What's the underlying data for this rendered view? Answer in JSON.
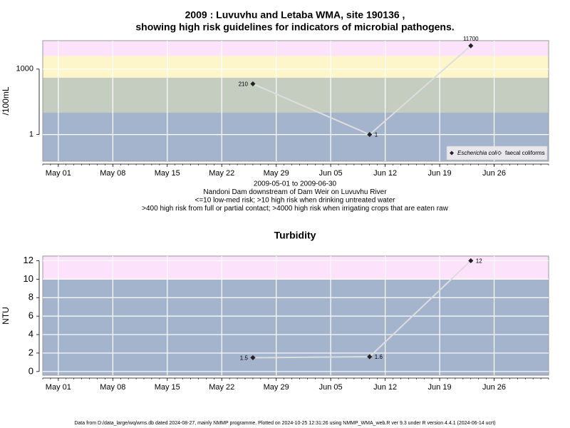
{
  "chart_data": [
    {
      "type": "line",
      "title": [
        "2009 : Luvuvhu and Letaba WMA, site 190136 ,",
        "showing high risk guidelines for indicators of microbial pathogens."
      ],
      "y_label": "/100mL",
      "log_scale": true,
      "x": [
        "May 26",
        "Jun 10",
        "Jun 23"
      ],
      "series": [
        {
          "name": "Escherichia coli",
          "color": "#dddddd",
          "marker_color": "#222222",
          "marker": "filled",
          "values": [
            210,
            1,
            11700
          ]
        },
        {
          "name": "faecal coliforms",
          "color": "#dddddd",
          "marker_color": "#222222",
          "marker": "open",
          "values": [
            null,
            null,
            null
          ]
        }
      ],
      "xlim": [
        "Apr 29",
        "Jul 03"
      ],
      "xticks": [
        "May 01",
        "May 08",
        "May 15",
        "May 22",
        "May 29",
        "Jun 05",
        "Jun 12",
        "Jun 19",
        "Jun 26"
      ],
      "ylim": [
        0.06,
        20000
      ],
      "yticks": [
        1,
        1000
      ],
      "thresholds": [
        10,
        400,
        4000
      ],
      "band_colors": [
        "#a4b4cd",
        "#c5cdc0",
        "#fdf6cb",
        "#fde2fb"
      ],
      "grid": true,
      "legend": "lower right",
      "notes": [
        "2009-05-01 to 2009-06-30",
        "Nandoni Dam downstream of Dam Weir on Luvuvhu River",
        "<=10 low-med risk; >10 high risk when drinking untreated water",
        ">400 high risk from full or partial contact; >4000 high risk when irrigating crops that are eaten raw"
      ]
    },
    {
      "type": "line",
      "title": [
        "Turbidity"
      ],
      "y_label": "NTU",
      "log_scale": false,
      "x": [
        "May 26",
        "Jun 10",
        "Jun 23"
      ],
      "series": [
        {
          "name": "Turbidity",
          "color": "#dddddd",
          "marker_color": "#222222",
          "marker": "filled",
          "values": [
            1.5,
            1.6,
            12
          ]
        }
      ],
      "xlim": [
        "Apr 29",
        "Jul 03"
      ],
      "xticks": [
        "May 01",
        "May 08",
        "May 15",
        "May 22",
        "May 29",
        "Jun 05",
        "Jun 12",
        "Jun 19",
        "Jun 26"
      ],
      "ylim": [
        -0.4,
        12.5
      ],
      "yticks": [
        0,
        2,
        4,
        6,
        8,
        10,
        12
      ],
      "thresholds": [
        10
      ],
      "band_colors": [
        "#a4b4cd",
        "#fde2fb"
      ],
      "grid": true
    }
  ],
  "footer": "Data from D:/data_large/wq/wms.db dated 2024-08-27, mainly NMMP programme. Plotted on 2024-10-25 12:31:26 using NMMP_WMA_web.R ver 9.3 under R version 4.4.1 (2024-06-14 ucrt)"
}
